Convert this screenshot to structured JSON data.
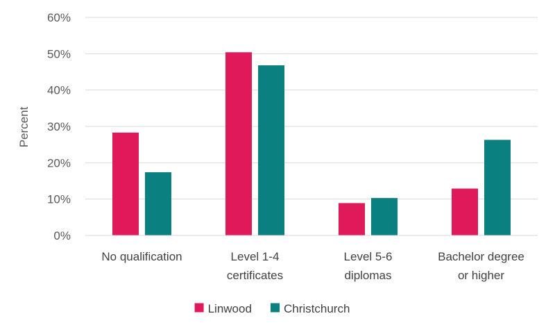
{
  "chart_data": {
    "type": "bar",
    "ylabel": "Percent",
    "ylim": [
      0,
      60
    ],
    "yticks": [
      "0%",
      "10%",
      "20%",
      "30%",
      "40%",
      "50%",
      "60%"
    ],
    "categories": [
      [
        "No qualification"
      ],
      [
        "Level 1-4",
        "certificates"
      ],
      [
        "Level 5-6",
        "diplomas"
      ],
      [
        "Bachelor degree",
        "or higher"
      ]
    ],
    "series": [
      {
        "name": "Linwood",
        "color": "#e0195a",
        "values": [
          28.3,
          50.4,
          8.9,
          12.9
        ]
      },
      {
        "name": "Christchurch",
        "color": "#0a8080",
        "values": [
          17.4,
          46.8,
          10.3,
          26.3
        ]
      }
    ],
    "grid": true,
    "legend": "bottom-center"
  }
}
